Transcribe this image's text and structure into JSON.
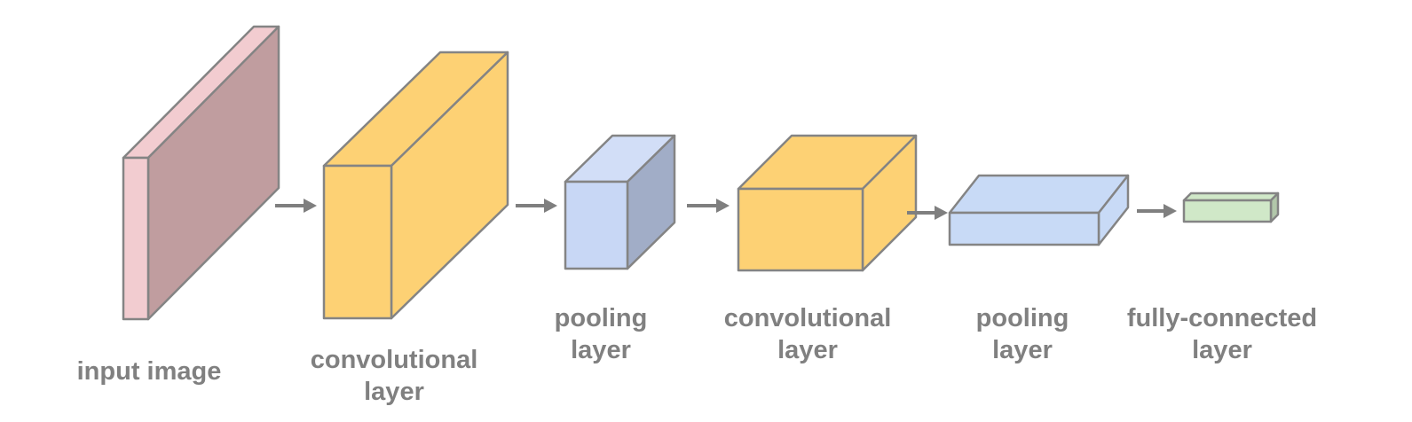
{
  "layers": [
    {
      "id": "input-image",
      "label_lines": [
        "input image"
      ],
      "colors": {
        "front": "#f2ccd0",
        "side": "#c09d9f",
        "top": "#f2ccd0"
      }
    },
    {
      "id": "convolutional-layer-1",
      "label_lines": [
        "convolutional",
        "layer"
      ],
      "colors": {
        "front": "#fdd174",
        "side": "#fdd174",
        "top": "#fdd174"
      }
    },
    {
      "id": "pooling-layer-1",
      "label_lines": [
        "pooling",
        "layer"
      ],
      "colors": {
        "front": "#c8d7f5",
        "side": "#a1adc7",
        "top": "#d2def7"
      }
    },
    {
      "id": "convolutional-layer-2",
      "label_lines": [
        "convolutional",
        "layer"
      ],
      "colors": {
        "front": "#fdd174",
        "side": "#fdd174",
        "top": "#fdd174"
      }
    },
    {
      "id": "pooling-layer-2",
      "label_lines": [
        "pooling",
        "layer"
      ],
      "colors": {
        "front": "#c8daf6",
        "side": "#c8daf6",
        "top": "#c8daf6"
      }
    },
    {
      "id": "fully-connected-layer",
      "label_lines": [
        "fully-connected",
        "layer"
      ],
      "colors": {
        "front": "#d0e8c8",
        "side": "#b2c7aa",
        "top": "#d0e8c8"
      }
    }
  ],
  "arrows": [
    {
      "from": "input-image",
      "to": "convolutional-layer-1"
    },
    {
      "from": "convolutional-layer-1",
      "to": "pooling-layer-1"
    },
    {
      "from": "pooling-layer-1",
      "to": "convolutional-layer-2"
    },
    {
      "from": "convolutional-layer-2",
      "to": "pooling-layer-2"
    },
    {
      "from": "pooling-layer-2",
      "to": "fully-connected-layer"
    }
  ],
  "edge_color": "#848484",
  "arrow_color": "#7f7f7f",
  "label_color": "#808080"
}
